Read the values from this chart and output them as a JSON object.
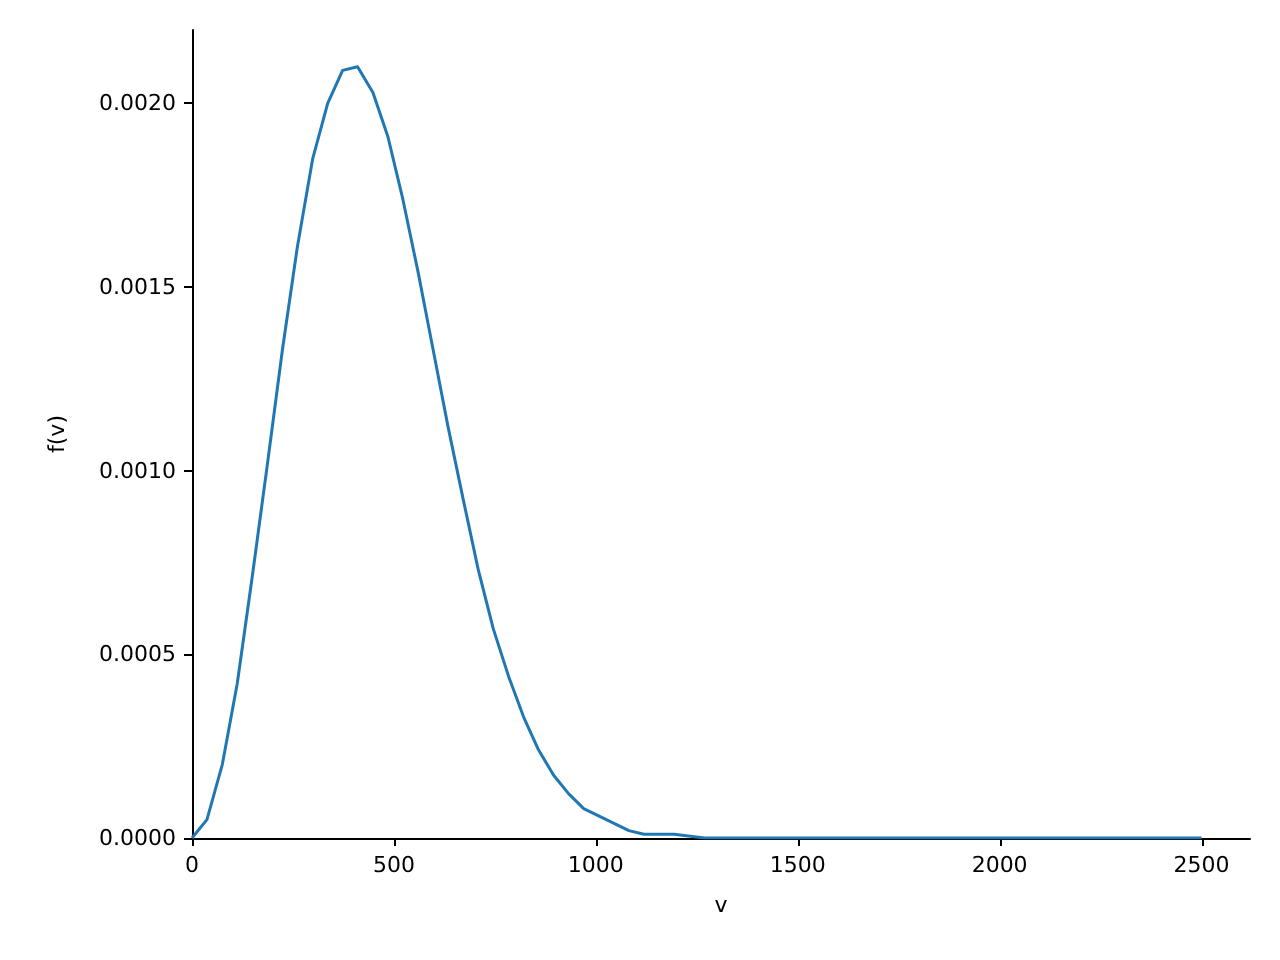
{
  "chart_data": {
    "type": "line",
    "xlabel": "v",
    "ylabel": "f(v)",
    "x": [
      0,
      37,
      75,
      112,
      149,
      187,
      224,
      261,
      299,
      336,
      373,
      410,
      448,
      485,
      522,
      560,
      597,
      634,
      672,
      709,
      746,
      784,
      821,
      858,
      896,
      933,
      970,
      1007,
      1045,
      1082,
      1119,
      1194,
      1269,
      1500,
      2000,
      2500
    ],
    "series": [
      {
        "color": "#1f77b4",
        "values": [
          0,
          5e-05,
          0.0002,
          0.00042,
          0.00071,
          0.00102,
          0.00133,
          0.00161,
          0.00185,
          0.002,
          0.00209,
          0.0021,
          0.00203,
          0.00191,
          0.00174,
          0.00154,
          0.00133,
          0.00112,
          0.00092,
          0.00073,
          0.00057,
          0.00044,
          0.00033,
          0.00024,
          0.00017,
          0.00012,
          8e-05,
          6e-05,
          4e-05,
          2e-05,
          1e-05,
          1e-05,
          0,
          0,
          0,
          0
        ]
      }
    ],
    "xlim": [
      0,
      2620
    ],
    "ylim": [
      0,
      0.0022
    ],
    "xticks": [
      0,
      500,
      1000,
      1500,
      2000,
      2500
    ],
    "yticks": [
      {
        "value": 0,
        "label": "0.0000"
      },
      {
        "value": 0.0005,
        "label": "0.0005"
      },
      {
        "value": 0.001,
        "label": "0.0010"
      },
      {
        "value": 0.0015,
        "label": "0.0015"
      },
      {
        "value": 0.002,
        "label": "0.0020"
      }
    ],
    "grid": false,
    "marker": "none",
    "line_style": "solid"
  }
}
